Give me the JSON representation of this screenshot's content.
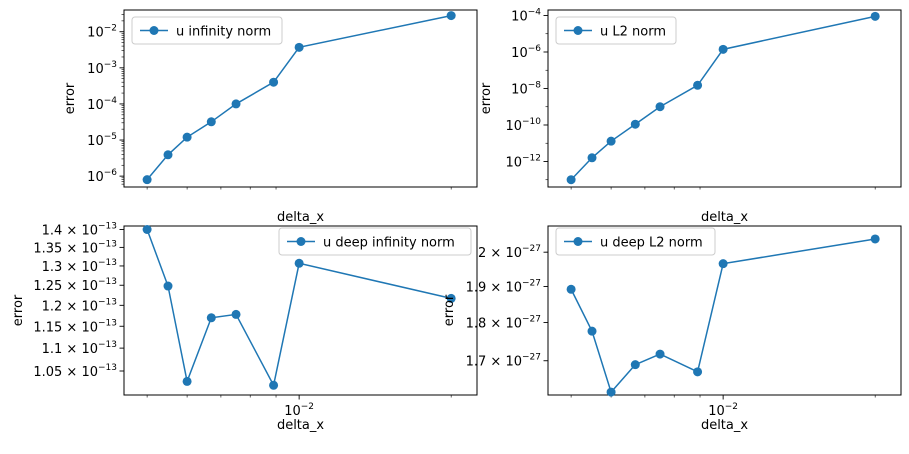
{
  "chart_data": [
    {
      "type": "line",
      "xscale": "log",
      "yscale": "log",
      "xlabel": "delta_x",
      "ylabel": "error",
      "xlim": [
        0.0045,
        0.0225
      ],
      "ylim": [
        5e-07,
        0.04
      ],
      "x": [
        0.005,
        0.0055,
        0.006,
        0.0067,
        0.0075,
        0.0089,
        0.01,
        0.02
      ],
      "series": [
        {
          "name": "u infinity norm",
          "color": "#1f77b4",
          "values": [
            8e-07,
            3.9e-06,
            1.2e-05,
            3.2e-05,
            0.0001,
            0.0004,
            0.0037,
            0.028
          ]
        }
      ],
      "yticks": [
        {
          "value": 1e-06,
          "base": "10",
          "exp": "−6"
        },
        {
          "value": 1e-05,
          "base": "10",
          "exp": "−5"
        },
        {
          "value": 0.0001,
          "base": "10",
          "exp": "−4"
        },
        {
          "value": 0.001,
          "base": "10",
          "exp": "−3"
        },
        {
          "value": 0.01,
          "base": "10",
          "exp": "−2"
        }
      ],
      "xticks": [],
      "legend": "top-left",
      "grid": false
    },
    {
      "type": "line",
      "xscale": "log",
      "yscale": "log",
      "xlabel": "delta_x",
      "ylabel": "error",
      "xlim": [
        0.0045,
        0.0225
      ],
      "ylim": [
        4e-14,
        0.0002
      ],
      "x": [
        0.005,
        0.0055,
        0.006,
        0.0067,
        0.0075,
        0.0089,
        0.01,
        0.02
      ],
      "series": [
        {
          "name": "u L2 norm",
          "color": "#1f77b4",
          "values": [
            1e-13,
            1.6e-12,
            1.3e-11,
            1.1e-10,
            1e-09,
            1.5e-08,
            1.4e-06,
            9e-05
          ]
        }
      ],
      "yticks": [
        {
          "value": 1e-12,
          "base": "10",
          "exp": "−12"
        },
        {
          "value": 1e-10,
          "base": "10",
          "exp": "−10"
        },
        {
          "value": 1e-08,
          "base": "10",
          "exp": "−8"
        },
        {
          "value": 1e-06,
          "base": "10",
          "exp": "−6"
        },
        {
          "value": 0.0001,
          "base": "10",
          "exp": "−4"
        }
      ],
      "xticks": [],
      "legend": "top-left",
      "grid": false
    },
    {
      "type": "line",
      "xscale": "log",
      "yscale": "log",
      "xlabel": "delta_x",
      "ylabel": "error",
      "xlim": [
        0.0045,
        0.0225
      ],
      "ylim": [
        1e-13,
        1.41e-13
      ],
      "x": [
        0.005,
        0.0055,
        0.006,
        0.0067,
        0.0075,
        0.0089,
        0.01,
        0.02
      ],
      "series": [
        {
          "name": "u deep infinity norm",
          "color": "#1f77b4",
          "values": [
            1.4e-13,
            1.248e-13,
            1.028e-13,
            1.17e-13,
            1.178e-13,
            1.02e-13,
            1.307e-13,
            1.217e-13
          ]
        }
      ],
      "yticks": [
        {
          "value": 1.05e-13,
          "base": "1.05 × 10",
          "exp": "−13"
        },
        {
          "value": 1.1e-13,
          "base": "1.1 × 10",
          "exp": "−13"
        },
        {
          "value": 1.15e-13,
          "base": "1.15 × 10",
          "exp": "−13"
        },
        {
          "value": 1.2e-13,
          "base": "1.2 × 10",
          "exp": "−13"
        },
        {
          "value": 1.25e-13,
          "base": "1.25 × 10",
          "exp": "−13"
        },
        {
          "value": 1.3e-13,
          "base": "1.3 × 10",
          "exp": "−13"
        },
        {
          "value": 1.35e-13,
          "base": "1.35 × 10",
          "exp": "−13"
        },
        {
          "value": 1.4e-13,
          "base": "1.4 × 10",
          "exp": "−13"
        }
      ],
      "xticks": [
        {
          "value": 0.01,
          "base": "10",
          "exp": "−2"
        }
      ],
      "legend": "top-right",
      "grid": false
    },
    {
      "type": "line",
      "xscale": "log",
      "yscale": "log",
      "xlabel": "delta_x",
      "ylabel": "error",
      "xlim": [
        0.0045,
        0.0225
      ],
      "ylim": [
        1.615e-27,
        2.08e-27
      ],
      "x": [
        0.005,
        0.0055,
        0.006,
        0.0067,
        0.0075,
        0.0089,
        0.01,
        0.02
      ],
      "series": [
        {
          "name": "u deep L2 norm",
          "color": "#1f77b4",
          "values": [
            1.892e-27,
            1.777e-27,
            1.622e-27,
            1.69e-27,
            1.717e-27,
            1.672e-27,
            1.966e-27,
            2.04e-27
          ]
        }
      ],
      "yticks": [
        {
          "value": 1.7e-27,
          "base": "1.7 × 10",
          "exp": "−27"
        },
        {
          "value": 1.8e-27,
          "base": "1.8 × 10",
          "exp": "−27"
        },
        {
          "value": 1.9e-27,
          "base": "1.9 × 10",
          "exp": "−27"
        },
        {
          "value": 2e-27,
          "base": "2 × 10",
          "exp": "−27"
        }
      ],
      "xticks": [
        {
          "value": 0.01,
          "base": "10",
          "exp": "−2"
        }
      ],
      "legend": "top-left",
      "grid": false
    }
  ]
}
